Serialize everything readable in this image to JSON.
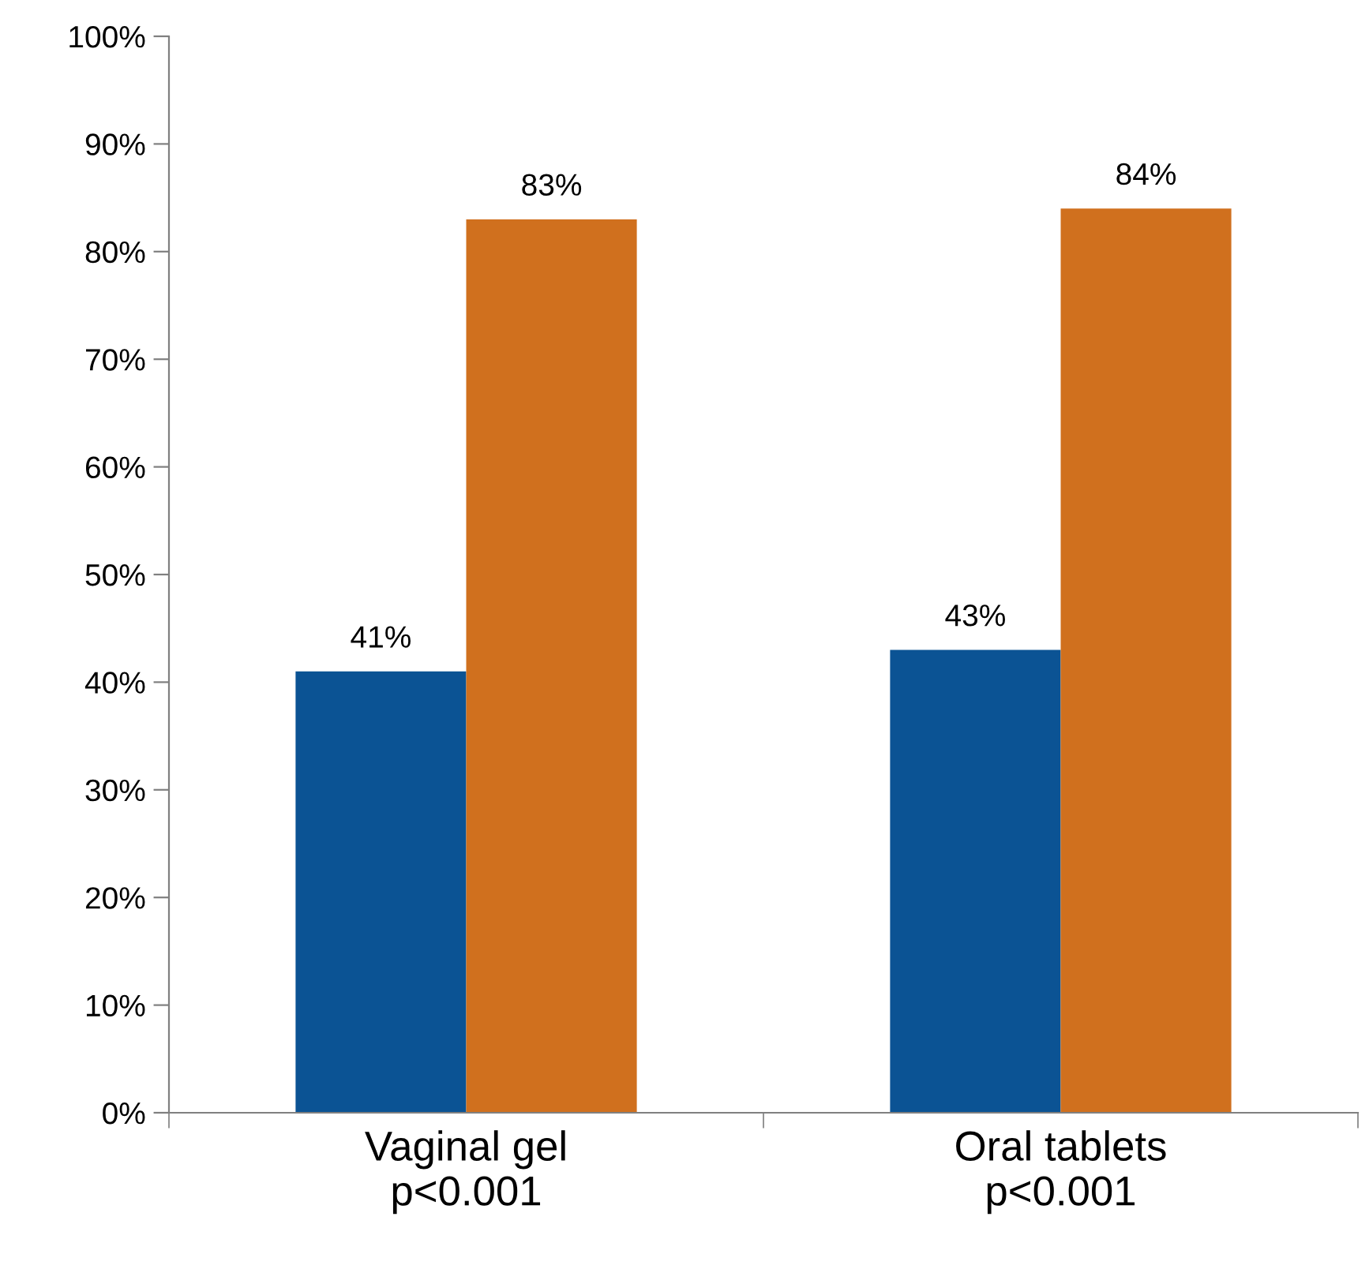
{
  "chart_data": {
    "type": "bar",
    "categories": [
      "Vaginal gel\np<0.001",
      "Oral tablets\np<0.001"
    ],
    "series": [
      {
        "color": "#0b5394",
        "values": [
          41,
          43
        ],
        "value_labels": [
          "41%",
          "43%"
        ]
      },
      {
        "color": "#d0701e",
        "values": [
          83,
          84
        ],
        "value_labels": [
          "83%",
          "84%"
        ]
      }
    ],
    "ylim": [
      0,
      100
    ],
    "yticks": [
      {
        "value": 0,
        "label": "0%"
      },
      {
        "value": 10,
        "label": "10%"
      },
      {
        "value": 20,
        "label": "20%"
      },
      {
        "value": 30,
        "label": "30%"
      },
      {
        "value": 40,
        "label": "40%"
      },
      {
        "value": 50,
        "label": "50%"
      },
      {
        "value": 60,
        "label": "60%"
      },
      {
        "value": 70,
        "label": "70%"
      },
      {
        "value": 80,
        "label": "80%"
      },
      {
        "value": 90,
        "label": "90%"
      },
      {
        "value": 100,
        "label": "100%"
      }
    ],
    "grid": false,
    "legend": false
  }
}
